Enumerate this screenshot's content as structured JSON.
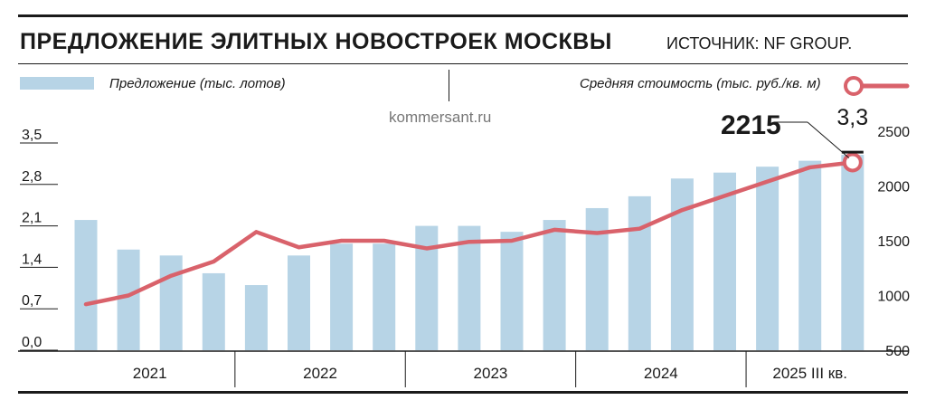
{
  "header": {
    "title": "ПРЕДЛОЖЕНИЕ ЭЛИТНЫХ НОВОСТРОЕК МОСКВЫ",
    "source": "ИСТОЧНИК: NF GROUP."
  },
  "legend": {
    "bars_label": "Предложение (тыс. лотов)",
    "line_label": "Средняя стоимость (тыс. руб./кв. м)"
  },
  "watermark": "kommersant.ru",
  "colors": {
    "bar": "#b7d4e6",
    "line": "#d9626b",
    "text": "#1a1a1a"
  },
  "chart_data": {
    "type": "bar",
    "categories": [
      "2021 Q1",
      "2021 Q2",
      "2021 Q3",
      "2021 Q4",
      "2022 Q1",
      "2022 Q2",
      "2022 Q3",
      "2022 Q4",
      "2023 Q1",
      "2023 Q2",
      "2023 Q3",
      "2023 Q4",
      "2024 Q1",
      "2024 Q2",
      "2024 Q3",
      "2024 Q4",
      "2025 Q1",
      "2025 Q2",
      "2025 Q3"
    ],
    "year_labels": [
      "2021",
      "2022",
      "2023",
      "2024",
      "2025 III кв."
    ],
    "series": [
      {
        "name": "Предложение (тыс. лотов)",
        "axis": "left",
        "values": [
          2.2,
          1.7,
          1.6,
          1.3,
          1.1,
          1.6,
          1.8,
          1.8,
          2.1,
          2.1,
          2.0,
          2.2,
          2.4,
          2.6,
          2.9,
          3.0,
          3.1,
          3.2,
          3.3
        ]
      },
      {
        "name": "Средняя стоимость (тыс. руб./кв. м)",
        "axis": "right",
        "values": [
          920,
          1000,
          1180,
          1310,
          1580,
          1440,
          1500,
          1500,
          1430,
          1490,
          1500,
          1600,
          1570,
          1610,
          1780,
          1910,
          2040,
          2170,
          2215
        ]
      }
    ],
    "left_axis": {
      "ticks": [
        "0,0",
        "0,7",
        "1,4",
        "2,1",
        "2,8",
        "3,5"
      ],
      "ylim": [
        0,
        3.5
      ]
    },
    "right_axis": {
      "ticks": [
        "500",
        "1000",
        "1500",
        "2000",
        "2500"
      ],
      "ylim": [
        500,
        2500
      ]
    },
    "annotations": {
      "last_line_value": "2215",
      "last_bar_value": "3,3"
    }
  }
}
